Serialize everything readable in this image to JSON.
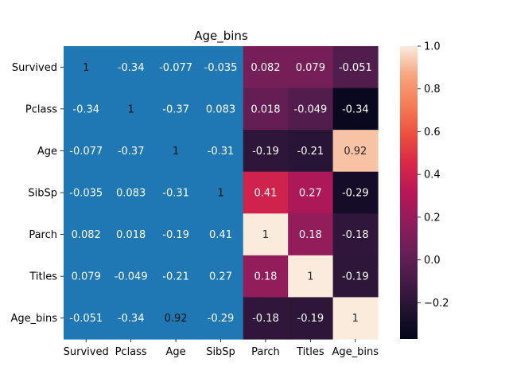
{
  "chart_data": {
    "type": "heatmap",
    "title": "Age_bins",
    "xlabel": "",
    "ylabel": "",
    "categories_x": [
      "Survived",
      "Pclass",
      "Age",
      "SibSp",
      "Parch",
      "Titles",
      "Age_bins"
    ],
    "categories_y": [
      "Survived",
      "Pclass",
      "Age",
      "SibSp",
      "Parch",
      "Titles",
      "Age_bins"
    ],
    "values": [
      [
        1,
        -0.34,
        -0.077,
        -0.035,
        0.082,
        0.079,
        -0.051
      ],
      [
        -0.34,
        1,
        -0.37,
        0.083,
        0.018,
        -0.049,
        -0.34
      ],
      [
        -0.077,
        -0.37,
        1,
        -0.31,
        -0.19,
        -0.21,
        0.92
      ],
      [
        -0.035,
        0.083,
        -0.31,
        1,
        0.41,
        0.27,
        -0.29
      ],
      [
        0.082,
        0.018,
        -0.19,
        0.41,
        1,
        0.18,
        -0.18
      ],
      [
        0.079,
        -0.049,
        -0.21,
        0.27,
        0.18,
        1,
        -0.19
      ],
      [
        -0.051,
        -0.34,
        0.92,
        -0.29,
        -0.18,
        -0.19,
        1
      ]
    ],
    "cell_labels": [
      [
        "1",
        "-0.34",
        "-0.077",
        "-0.035",
        "0.082",
        "0.079",
        "-0.051"
      ],
      [
        "-0.34",
        "1",
        "-0.37",
        "0.083",
        "0.018",
        "-0.049",
        "-0.34"
      ],
      [
        "-0.077",
        "-0.37",
        "1",
        "-0.31",
        "-0.19",
        "-0.21",
        "0.92"
      ],
      [
        "-0.035",
        "0.083",
        "-0.31",
        "1",
        "0.41",
        "0.27",
        "-0.29"
      ],
      [
        "0.082",
        "0.018",
        "-0.19",
        "0.41",
        "1",
        "0.18",
        "-0.18"
      ],
      [
        "0.079",
        "-0.049",
        "-0.21",
        "0.27",
        "0.18",
        "1",
        "-0.19"
      ],
      [
        "-0.051",
        "-0.34",
        "0.92",
        "-0.29",
        "-0.18",
        "-0.19",
        "1"
      ]
    ],
    "masked_columns": [
      "Survived",
      "Pclass",
      "Age",
      "SibSp"
    ],
    "masked_fill": "#1f77b4",
    "colorbar": {
      "range": [
        -0.37,
        1
      ],
      "ticks": [
        1.0,
        0.8,
        0.6,
        0.4,
        0.2,
        0.0,
        -0.2
      ],
      "tick_labels": [
        "1.0",
        "0.8",
        "0.6",
        "0.4",
        "0.2",
        "0.0",
        "−0.2"
      ],
      "colormap": "rocket",
      "placement": "right"
    },
    "colormap_stops": [
      [
        0.0,
        "#03051a"
      ],
      [
        0.1,
        "#221331"
      ],
      [
        0.2,
        "#451c47"
      ],
      [
        0.3,
        "#6a1f56"
      ],
      [
        0.4,
        "#921c5b"
      ],
      [
        0.5,
        "#b91657"
      ],
      [
        0.6,
        "#d92847"
      ],
      [
        0.7,
        "#ed503e"
      ],
      [
        0.8,
        "#f47d57"
      ],
      [
        0.9,
        "#f6a47c"
      ],
      [
        1.0,
        "#faebdd"
      ]
    ],
    "grid": false
  }
}
